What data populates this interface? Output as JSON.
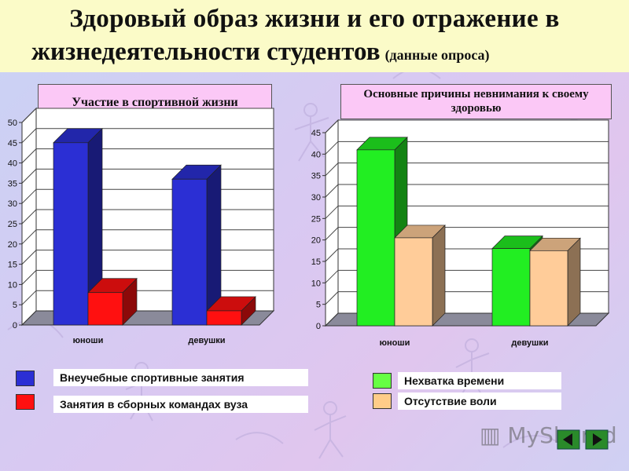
{
  "title": {
    "line1": "Здоровый образ жизни и его отражение в",
    "line2": "жизнедеятельности студентов",
    "note": "(данные опроса)"
  },
  "legend1": [
    {
      "label": "Внеучебные спортивные занятия",
      "color": "#2b2fd4"
    },
    {
      "label": "Занятия в сборных командах вуза",
      "color": "#ff1010"
    }
  ],
  "legend2": [
    {
      "label": "Нехватка времени",
      "color": "#66ff44"
    },
    {
      "label": "Отсутствие воли",
      "color": "#ffcc88"
    }
  ],
  "watermark": "MyShared",
  "chart_data": [
    {
      "type": "bar",
      "title": "Участие в спортивной жизни",
      "categories": [
        "юноши",
        "девушки"
      ],
      "series": [
        {
          "name": "Внеучебные спортивные занятия",
          "values": [
            45,
            36
          ],
          "color": "#2b2fd4"
        },
        {
          "name": "Занятия в сборных командах вуза",
          "values": [
            8,
            3.5
          ],
          "color": "#ff1010"
        }
      ],
      "ylim": [
        0,
        50
      ],
      "yticks": [
        0,
        5,
        10,
        15,
        20,
        25,
        30,
        35,
        40,
        45,
        50
      ],
      "grid": true,
      "three_d": true
    },
    {
      "type": "bar",
      "title": "Основные причины невнимания к своему здоровью",
      "categories": [
        "юноши",
        "девушки"
      ],
      "series": [
        {
          "name": "Нехватка времени",
          "values": [
            41,
            18
          ],
          "color": "#22ee22"
        },
        {
          "name": "Отсутствие воли",
          "values": [
            20.5,
            17.5
          ],
          "color": "#ffcc99"
        }
      ],
      "ylim": [
        0,
        45
      ],
      "yticks": [
        0,
        5,
        10,
        15,
        20,
        25,
        30,
        35,
        40,
        45
      ],
      "grid": true,
      "three_d": true
    }
  ]
}
